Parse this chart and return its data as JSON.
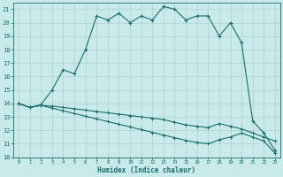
{
  "xlabel": "Humidex (Indice chaleur)",
  "xlim": [
    -0.5,
    23.5
  ],
  "ylim": [
    10,
    21.5
  ],
  "yticks": [
    10,
    11,
    12,
    13,
    14,
    15,
    16,
    17,
    18,
    19,
    20,
    21
  ],
  "xticks": [
    0,
    1,
    2,
    3,
    4,
    5,
    6,
    7,
    8,
    9,
    10,
    11,
    12,
    13,
    14,
    15,
    16,
    17,
    18,
    19,
    20,
    21,
    22,
    23
  ],
  "bg_color": "#c8eaea",
  "line_color": "#1a6b6b",
  "grid_color": "#b0d0d0",
  "curve1_x": [
    0,
    1,
    2,
    3,
    4,
    5,
    6,
    7,
    8,
    9,
    10,
    11,
    12,
    13,
    14,
    15,
    16,
    17,
    18,
    19,
    20,
    21,
    22,
    23
  ],
  "curve1_y": [
    14.0,
    13.7,
    13.9,
    15.0,
    16.5,
    16.2,
    18.0,
    20.5,
    20.2,
    20.7,
    20.0,
    20.5,
    20.2,
    21.2,
    21.0,
    20.2,
    20.5,
    20.5,
    19.0,
    20.0,
    18.5,
    12.7,
    11.8,
    10.5
  ],
  "curve2_x": [
    0,
    1,
    2,
    3,
    4,
    5,
    6,
    7,
    8,
    9,
    10,
    11,
    12,
    13,
    14,
    15,
    16,
    17,
    18,
    19,
    20,
    21,
    22,
    23
  ],
  "curve2_y": [
    14.0,
    13.7,
    13.85,
    13.8,
    13.7,
    13.6,
    13.5,
    13.4,
    13.3,
    13.2,
    13.1,
    13.0,
    12.9,
    12.8,
    12.6,
    12.4,
    12.3,
    12.2,
    12.5,
    12.3,
    12.1,
    11.8,
    11.5,
    11.2
  ],
  "curve3_x": [
    0,
    1,
    2,
    3,
    4,
    5,
    6,
    7,
    8,
    9,
    10,
    11,
    12,
    13,
    14,
    15,
    16,
    17,
    18,
    19,
    20,
    21,
    22,
    23
  ],
  "curve3_y": [
    14.0,
    13.7,
    13.85,
    13.65,
    13.45,
    13.25,
    13.05,
    12.85,
    12.65,
    12.45,
    12.25,
    12.05,
    11.85,
    11.65,
    11.45,
    11.25,
    11.1,
    11.0,
    11.3,
    11.5,
    11.8,
    11.5,
    11.2,
    10.3
  ]
}
